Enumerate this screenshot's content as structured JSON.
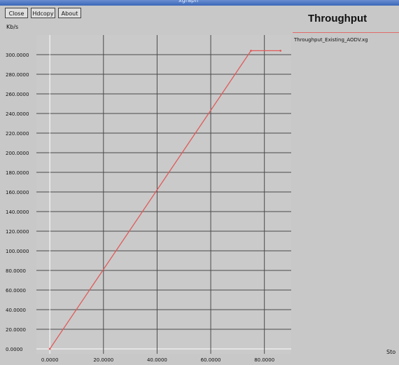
{
  "window": {
    "title": "xgraph"
  },
  "toolbar": {
    "close": "Close",
    "hdcopy": "Hdcopy",
    "about": "About"
  },
  "chart_data": {
    "type": "line",
    "title": "Throughput",
    "ylabel": "Kb/s",
    "xlabel": "Sto",
    "xlim": [
      -5,
      90
    ],
    "ylim": [
      -5,
      320
    ],
    "x_ticks": [
      {
        "value": 0,
        "label": "0.0000"
      },
      {
        "value": 20,
        "label": "20.0000"
      },
      {
        "value": 40,
        "label": "40.0000"
      },
      {
        "value": 60,
        "label": "60.0000"
      },
      {
        "value": 80,
        "label": "80.0000"
      }
    ],
    "y_ticks": [
      {
        "value": 0,
        "label": "0.0000"
      },
      {
        "value": 20,
        "label": "20.0000"
      },
      {
        "value": 40,
        "label": "40.0000"
      },
      {
        "value": 60,
        "label": "60.0000"
      },
      {
        "value": 80,
        "label": "80.0000"
      },
      {
        "value": 100,
        "label": "100.0000"
      },
      {
        "value": 120,
        "label": "120.0000"
      },
      {
        "value": 140,
        "label": "140.0000"
      },
      {
        "value": 160,
        "label": "160.0000"
      },
      {
        "value": 180,
        "label": "180.0000"
      },
      {
        "value": 200,
        "label": "200.0000"
      },
      {
        "value": 220,
        "label": "220.0000"
      },
      {
        "value": 240,
        "label": "240.0000"
      },
      {
        "value": 260,
        "label": "260.0000"
      },
      {
        "value": 280,
        "label": "280.0000"
      },
      {
        "value": 300,
        "label": "300.0000"
      }
    ],
    "grid": true,
    "legend_position": "top-right",
    "series": [
      {
        "name": "Throughput_Existing_AODV.xg",
        "color": "#e05a5a",
        "points": [
          [
            0,
            0
          ],
          [
            75,
            304
          ],
          [
            86,
            304
          ]
        ]
      }
    ]
  }
}
